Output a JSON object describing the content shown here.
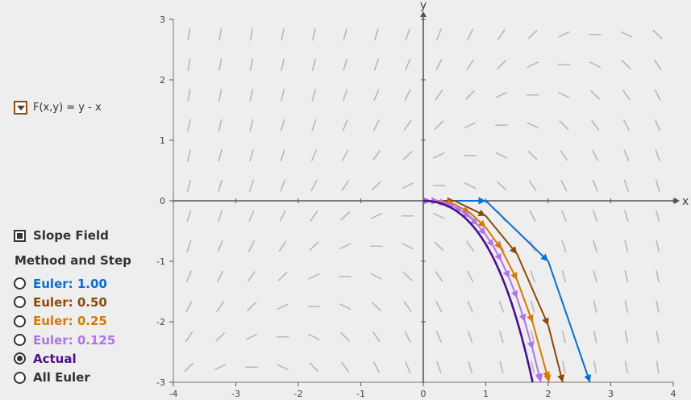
{
  "controls": {
    "function_label": "F(x,y) = y - x",
    "slope_field": {
      "label": "Slope Field",
      "checked": true
    },
    "method_title": "Method and Step",
    "methods": [
      {
        "label": "Euler: 1.00",
        "color": "#0a6ed1",
        "selected": false
      },
      {
        "label": "Euler: 0.50",
        "color": "#8b4a0c",
        "selected": false
      },
      {
        "label": "Euler: 0.25",
        "color": "#d97706",
        "selected": false
      },
      {
        "label": "Euler: 0.125",
        "color": "#b074e8",
        "selected": false
      },
      {
        "label": "Actual",
        "color": "#4b0f8c",
        "selected": true
      },
      {
        "label": "All Euler",
        "color": "#333333",
        "selected": false
      }
    ]
  },
  "chart_data": {
    "type": "line",
    "function": "y - x",
    "xlabel": "x",
    "ylabel": "y",
    "xlim": [
      -4,
      4
    ],
    "ylim": [
      -3,
      3
    ],
    "x_ticks": [
      "-4",
      "-3",
      "-2",
      "-1",
      "0",
      "1",
      "2",
      "3",
      "4"
    ],
    "y_ticks": [
      "-3",
      "-2",
      "-1",
      "0",
      "1",
      "2",
      "3"
    ],
    "slope_field": true,
    "series": [
      {
        "color": "#0a6ed1",
        "x": [
          0,
          1,
          2,
          3
        ],
        "y": [
          0,
          0,
          -1,
          -4
        ]
      },
      {
        "color": "#8b4a0c",
        "x": [
          0,
          0.5,
          1,
          1.5,
          2,
          2.5
        ],
        "y": [
          0,
          0,
          -0.25,
          -0.88,
          -2.06,
          -4.09
        ]
      },
      {
        "color": "#d97706",
        "x": [
          0,
          0.25,
          0.5,
          0.75,
          1,
          1.25,
          1.5,
          1.75,
          2,
          2.25
        ],
        "y": [
          0,
          0,
          -0.06,
          -0.2,
          -0.44,
          -0.8,
          -1.31,
          -2.01,
          -2.95,
          -4.19
        ]
      },
      {
        "color": "#b074e8",
        "x": [
          0,
          0.125,
          0.25,
          0.375,
          0.5,
          0.625,
          0.75,
          0.875,
          1,
          1.125,
          1.25,
          1.375,
          1.5,
          1.625,
          1.75,
          1.875,
          2
        ],
        "y": [
          0,
          0,
          -0.016,
          -0.049,
          -0.102,
          -0.177,
          -0.277,
          -0.405,
          -0.565,
          -0.761,
          -0.997,
          -1.279,
          -1.611,
          -2.0,
          -2.453,
          -2.978,
          -3.584
        ]
      },
      {
        "color": "#4b0f8c",
        "function": "x + 1 - e^x",
        "x_range": [
          0,
          1.9
        ]
      }
    ]
  }
}
